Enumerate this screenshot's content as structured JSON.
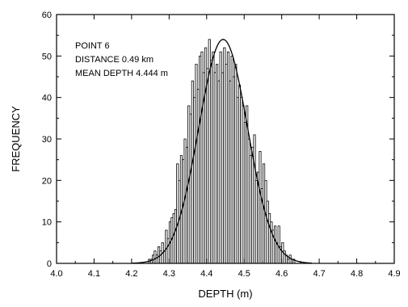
{
  "chart_data": {
    "type": "bar",
    "xlabel": "DEPTH (m)",
    "ylabel": "FREQUENCY",
    "xlim": [
      4.0,
      4.9
    ],
    "ylim": [
      0,
      60
    ],
    "xticks": [
      "4.0",
      "4.1",
      "4.2",
      "4.3",
      "4.4",
      "4.5",
      "4.6",
      "4.7",
      "4.8",
      "4.9"
    ],
    "yticks": [
      "0",
      "10",
      "20",
      "30",
      "40",
      "50",
      "60"
    ],
    "annotations": [
      "POINT 6",
      "DISTANCE 0.49 km",
      "MEAN DEPTH 4.444 m"
    ],
    "bin_width": 0.005,
    "bins": [
      4.24,
      4.245,
      4.25,
      4.255,
      4.26,
      4.265,
      4.27,
      4.275,
      4.28,
      4.285,
      4.29,
      4.295,
      4.3,
      4.305,
      4.31,
      4.315,
      4.32,
      4.325,
      4.33,
      4.335,
      4.34,
      4.345,
      4.35,
      4.355,
      4.36,
      4.365,
      4.37,
      4.375,
      4.38,
      4.385,
      4.39,
      4.395,
      4.4,
      4.405,
      4.41,
      4.415,
      4.42,
      4.425,
      4.43,
      4.435,
      4.44,
      4.445,
      4.45,
      4.455,
      4.46,
      4.465,
      4.47,
      4.475,
      4.48,
      4.485,
      4.49,
      4.495,
      4.5,
      4.505,
      4.51,
      4.515,
      4.52,
      4.525,
      4.53,
      4.535,
      4.54,
      4.545,
      4.55,
      4.555,
      4.56,
      4.565,
      4.57,
      4.575,
      4.58,
      4.585,
      4.59,
      4.595,
      4.6,
      4.605,
      4.61,
      4.615,
      4.62,
      4.625,
      4.63,
      4.635
    ],
    "frequencies": [
      0,
      1,
      1,
      2,
      3,
      2,
      4,
      3,
      5,
      3,
      8,
      6,
      10,
      11,
      12,
      13,
      24,
      20,
      26,
      25,
      30,
      28,
      38,
      36,
      44,
      40,
      48,
      42,
      50,
      51,
      46,
      52,
      47,
      54,
      49,
      51,
      46,
      48,
      44,
      51,
      46,
      52,
      48,
      51,
      44,
      50,
      45,
      48,
      40,
      43,
      40,
      38,
      34,
      38,
      30,
      26,
      28,
      31,
      20,
      22,
      27,
      18,
      24,
      20,
      15,
      12,
      10,
      8,
      9,
      5,
      9,
      4,
      5,
      3,
      2,
      1,
      2,
      1,
      1,
      0
    ],
    "fit_curve": {
      "type": "gaussian",
      "mean": 4.444,
      "sigma": 0.065,
      "peak": 54
    }
  }
}
